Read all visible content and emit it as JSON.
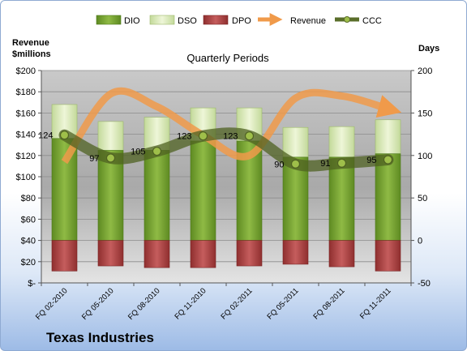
{
  "chart_data": {
    "type": "bar",
    "title": "Quarterly Periods",
    "company": "Texas Industries",
    "left_axis_label": [
      "Revenue",
      "$millions"
    ],
    "right_axis_label": "Days",
    "categories": [
      "FQ 02-2010",
      "FQ 05-2010",
      "FQ 08-2010",
      "FQ 11-2010",
      "FQ 02-2011",
      "FQ 05-2011",
      "FQ 08-2011",
      "FQ 11-2011"
    ],
    "left_ticks": [
      "$200",
      "$180",
      "$160",
      "$140",
      "$120",
      "$100",
      "$80",
      "$60",
      "$40",
      "$20",
      "$-"
    ],
    "right_ticks": [
      "200",
      "150",
      "100",
      "50",
      "0",
      "-50"
    ],
    "ylim_left": [
      0,
      200
    ],
    "ylim_right": [
      -50,
      200
    ],
    "legend": [
      {
        "name": "DIO",
        "color": "#6f9a2c"
      },
      {
        "name": "DSO",
        "color": "#e3efc5"
      },
      {
        "name": "DPO",
        "color": "#b04a4a"
      },
      {
        "name": "Revenue",
        "color": "#f09a4a"
      },
      {
        "name": "CCC",
        "color": "#5a6e2a"
      }
    ],
    "series": [
      {
        "name": "DIO",
        "axis": "right",
        "values": [
          120,
          106,
          106,
          117,
          117,
          98,
          98,
          102
        ]
      },
      {
        "name": "DSO",
        "axis": "right",
        "values": [
          40,
          34,
          39,
          39,
          39,
          35,
          36,
          40
        ]
      },
      {
        "name": "DPO",
        "axis": "right",
        "values": [
          -36,
          -30,
          -32,
          -32,
          -30,
          -28,
          -31,
          -36
        ]
      },
      {
        "name": "Revenue",
        "axis": "left",
        "values": [
          114,
          178,
          166,
          139,
          120,
          174,
          176,
          164
        ]
      },
      {
        "name": "CCC",
        "axis": "right",
        "values": [
          124,
          97,
          105,
          123,
          123,
          90,
          91,
          95
        ]
      }
    ],
    "data_labels": [
      "124",
      "97",
      "105",
      "123",
      "123",
      "90",
      "91",
      "95"
    ],
    "grid": true,
    "legend_position": "top"
  }
}
